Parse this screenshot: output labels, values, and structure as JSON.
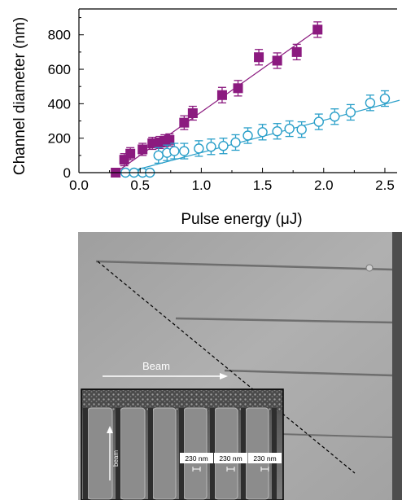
{
  "chart_data": {
    "type": "scatter",
    "xlabel": "Pulse energy (μJ)",
    "ylabel": "Channel diameter (nm)",
    "xlim": [
      0.0,
      2.6
    ],
    "ylim": [
      0,
      950
    ],
    "xticks": [
      "0.0",
      "0.5",
      "1.0",
      "1.5",
      "2.0",
      "2.5"
    ],
    "xtick_values": [
      0.0,
      0.5,
      1.0,
      1.5,
      2.0,
      2.5
    ],
    "yticks": [
      "0",
      "200",
      "400",
      "600",
      "800"
    ],
    "ytick_values": [
      0,
      200,
      400,
      600,
      800
    ],
    "grid": false,
    "series": [
      {
        "color": "#8b1a7f",
        "marker": "filled-square",
        "x": [
          0.3,
          0.37,
          0.42,
          0.52,
          0.6,
          0.66,
          0.7,
          0.74,
          0.86,
          0.93,
          1.17,
          1.3,
          1.47,
          1.62,
          1.78,
          1.95
        ],
        "y": [
          0,
          75,
          110,
          135,
          170,
          175,
          185,
          190,
          290,
          345,
          450,
          490,
          670,
          650,
          700,
          830
        ],
        "err": [
          0,
          35,
          35,
          35,
          35,
          35,
          35,
          35,
          40,
          40,
          45,
          45,
          45,
          45,
          45,
          45
        ],
        "fit": {
          "x": [
            0.3,
            1.97
          ],
          "y": [
            0,
            840
          ]
        }
      },
      {
        "color": "#2a9fc9",
        "marker": "open-circle",
        "x": [
          0.38,
          0.45,
          0.52,
          0.58,
          0.65,
          0.72,
          0.78,
          0.86,
          0.98,
          1.08,
          1.18,
          1.28,
          1.38,
          1.5,
          1.62,
          1.72,
          1.82,
          1.96,
          2.09,
          2.22,
          2.38,
          2.5
        ],
        "y": [
          0,
          0,
          0,
          0,
          100,
          115,
          125,
          125,
          140,
          150,
          155,
          175,
          215,
          235,
          240,
          255,
          250,
          295,
          325,
          350,
          405,
          430
        ],
        "err": [
          0,
          0,
          0,
          0,
          45,
          45,
          45,
          45,
          45,
          45,
          45,
          45,
          45,
          45,
          45,
          45,
          45,
          45,
          45,
          45,
          45,
          45
        ],
        "fit": {
          "x": [
            0.38,
            2.62
          ],
          "y": [
            0,
            420
          ]
        }
      }
    ]
  },
  "sem_image": {
    "beam_label": "Beam",
    "inset_beam_label": "beam",
    "scale_labels": [
      "230 nm",
      "230 nm",
      "230 nm"
    ]
  }
}
